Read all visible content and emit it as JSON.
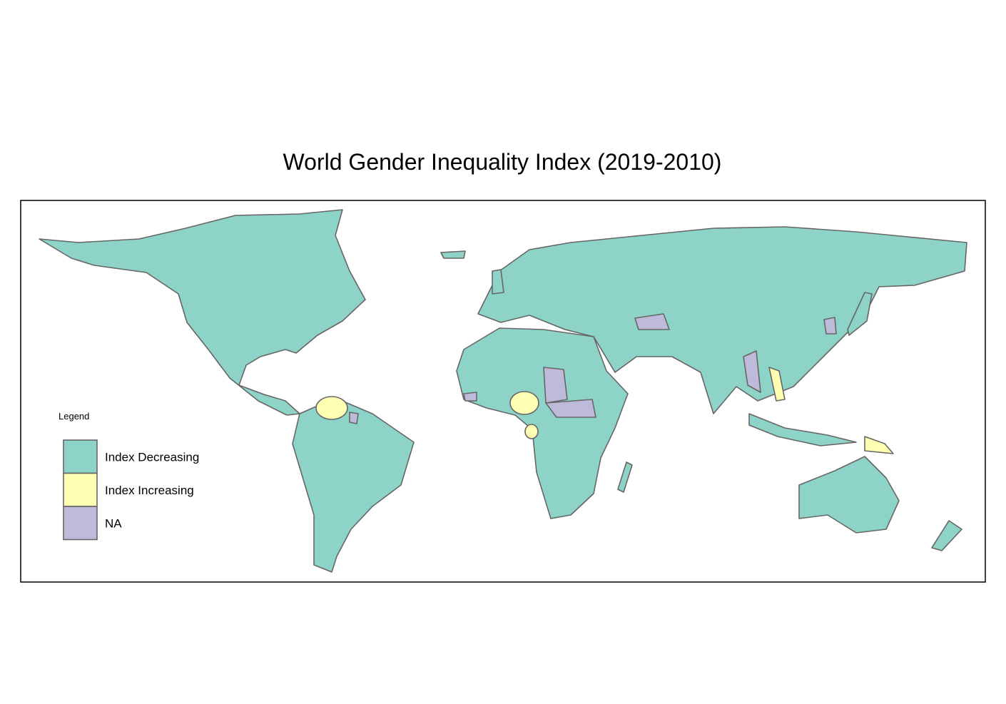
{
  "title": "World Gender Inequality Index (2019-2010)",
  "legend": {
    "title": "Legend",
    "items": [
      {
        "label": "Index Decreasing",
        "color": "#8dd3c7"
      },
      {
        "label": "Index Increasing",
        "color": "#ffffb3"
      },
      {
        "label": "NA",
        "color": "#bebada"
      }
    ]
  }
}
